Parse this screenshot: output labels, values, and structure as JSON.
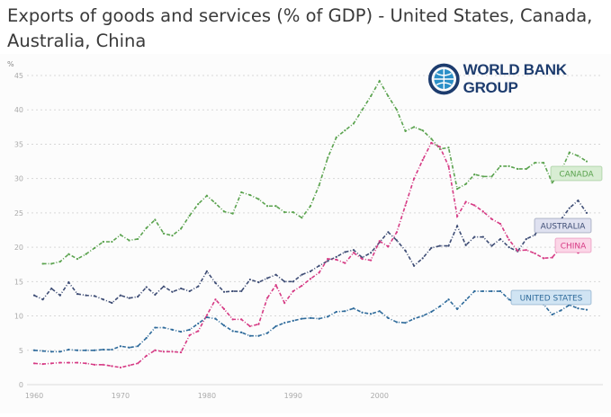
{
  "header": {
    "title": "Exports of goods and services (% of GDP) - United States, Canada, Australia, China"
  },
  "logo": {
    "text": "WORLD BANK GROUP"
  },
  "chart_data": {
    "type": "line",
    "title": "Exports of goods and services (% of GDP) - United States, Canada, Australia, China",
    "ylabel": "%",
    "xlabel": "",
    "ylim": [
      0,
      45
    ],
    "xlim": [
      1960,
      2024
    ],
    "yticks": [
      0,
      5,
      10,
      15,
      20,
      25,
      30,
      35,
      40,
      45
    ],
    "xticks": [
      1960,
      1970,
      1980,
      1990,
      2000
    ],
    "grid": true,
    "legend": "inline labels at right end of lines",
    "series": [
      {
        "name": "CANADA",
        "color": "#5ba34f",
        "label_bg": "#d8edd3",
        "start": 1961,
        "values": [
          17.6,
          17.6,
          17.9,
          19,
          18.3,
          19,
          19.9,
          20.8,
          20.8,
          21.8,
          21,
          21.2,
          22.8,
          24,
          22,
          21.7,
          22.7,
          24.6,
          26.3,
          27.5,
          26.4,
          25.2,
          24.9,
          28,
          27.6,
          27,
          26,
          26,
          25.1,
          25.1,
          24.3,
          26,
          29,
          33,
          36,
          37,
          38,
          40,
          42,
          44.2,
          42,
          40,
          36.9,
          37.5,
          37,
          35.8,
          34.3,
          34.5,
          28.5,
          29.2,
          30.6,
          30.3,
          30.3,
          31.8,
          31.8,
          31.4,
          31.4,
          32.3,
          32.3,
          29.4,
          31,
          33.8,
          33.3,
          32.5
        ]
      },
      {
        "name": "AUSTRALIA",
        "color": "#3e4d75",
        "label_bg": "#dfe1f0",
        "start": 1960,
        "values": [
          13,
          12.4,
          14,
          13,
          14.9,
          13.2,
          13,
          12.9,
          12.4,
          11.9,
          13,
          12.6,
          12.8,
          14.2,
          13.1,
          14.3,
          13.5,
          14,
          13.6,
          14.3,
          16.5,
          14.8,
          13.5,
          13.6,
          13.6,
          15.3,
          14.9,
          15.5,
          16,
          15,
          15,
          16,
          16.5,
          17.3,
          18,
          18.6,
          19.3,
          19.6,
          18.5,
          19.2,
          20.7,
          22.2,
          21,
          19.5,
          17.3,
          18.4,
          19.9,
          20.2,
          20.2,
          23.1,
          20.3,
          21.5,
          21.5,
          20.2,
          21.2,
          20,
          19.4,
          21.2,
          21.8,
          24,
          22.9,
          24,
          25.7,
          26.8,
          25
        ]
      },
      {
        "name": "CHINA",
        "color": "#d63a84",
        "label_bg": "#fbd6e7",
        "start": 1960,
        "values": [
          3.1,
          3,
          3.1,
          3.2,
          3.2,
          3.2,
          3.1,
          2.9,
          2.9,
          2.7,
          2.5,
          2.8,
          3.1,
          4.2,
          5,
          4.8,
          4.8,
          4.7,
          7.2,
          7.8,
          10.1,
          12.4,
          11,
          9.5,
          9.5,
          8.5,
          8.8,
          12.6,
          14.5,
          11.9,
          13.6,
          14.4,
          15.4,
          16.3,
          18.3,
          18.2,
          17.7,
          19.2,
          18.3,
          18.1,
          20.9,
          20.1,
          22.2,
          26.1,
          30,
          32.7,
          35.2,
          34.6,
          31.8,
          24.5,
          26.6,
          26.1,
          25.2,
          24.1,
          23.4,
          21.1,
          19.5,
          19.6,
          19.1,
          18.4,
          18.5,
          20,
          20.5,
          19.2,
          19.8
        ]
      },
      {
        "name": "UNITED STATES",
        "color": "#2f6b9b",
        "label_bg": "#d0e4f3",
        "start": 1960,
        "values": [
          5,
          4.9,
          4.8,
          4.8,
          5.1,
          5,
          5,
          5,
          5.1,
          5.1,
          5.6,
          5.4,
          5.6,
          6.8,
          8.3,
          8.3,
          8,
          7.7,
          8,
          8.9,
          9.8,
          9.6,
          8.6,
          7.8,
          7.6,
          7.1,
          7.1,
          7.5,
          8.5,
          9,
          9.3,
          9.6,
          9.7,
          9.6,
          9.9,
          10.6,
          10.7,
          11.1,
          10.5,
          10.3,
          10.7,
          9.7,
          9.1,
          9,
          9.6,
          10,
          10.6,
          11.4,
          12.4,
          11,
          12.3,
          13.6,
          13.6,
          13.6,
          13.6,
          12.4,
          11.9,
          12.1,
          12.2,
          11.7,
          10.2,
          10.8,
          11.6,
          11.1,
          10.9
        ]
      }
    ]
  }
}
